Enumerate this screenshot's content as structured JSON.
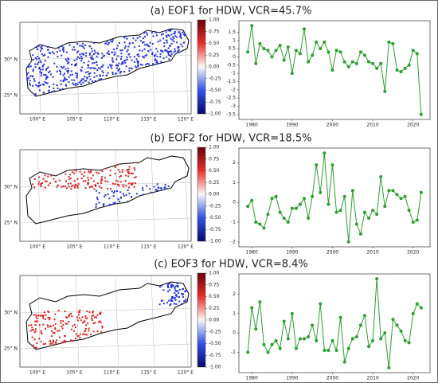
{
  "chart_data": [
    {
      "type": "line",
      "title": "(a) EOF1 for HDW, VCR=45.7%",
      "x": [
        1979,
        1980,
        1981,
        1982,
        1983,
        1984,
        1985,
        1986,
        1987,
        1988,
        1989,
        1990,
        1991,
        1992,
        1993,
        1994,
        1995,
        1996,
        1997,
        1998,
        1999,
        2000,
        2001,
        2002,
        2003,
        2004,
        2005,
        2006,
        2007,
        2008,
        2009,
        2010,
        2011,
        2012,
        2013,
        2014,
        2015,
        2016,
        2017,
        2018,
        2019,
        2020,
        2021,
        2022
      ],
      "values": [
        0.3,
        1.9,
        -0.4,
        0.8,
        0.5,
        0.4,
        0,
        0.4,
        0.7,
        -0.2,
        0.6,
        -1,
        0.4,
        0.2,
        1.7,
        -0.3,
        0.1,
        0.9,
        0.5,
        0.9,
        0.3,
        -0.8,
        0.4,
        0.3,
        -0.3,
        -0.6,
        -0.3,
        -0.4,
        0.3,
        0.1,
        -0.3,
        -0.4,
        -0.7,
        -0.4,
        -2.1,
        0.9,
        0.8,
        -0.8,
        -0.9,
        -0.7,
        -0.5,
        0.4,
        0.2,
        -3.5
      ],
      "color": "#2ca02c",
      "xlim": [
        1976.8,
        2024.2
      ],
      "xticks": [
        1980,
        1990,
        2000,
        2010,
        2020
      ],
      "ylim": [
        -3.8,
        2.2
      ],
      "yticks": [
        -3.5,
        -3,
        -2.5,
        -2,
        -1.5,
        -1,
        -0.5,
        0,
        0.5,
        1,
        1.5
      ]
    },
    {
      "type": "line",
      "title": "(b) EOF2 for HDW, VCR=18.5%",
      "x": [
        1979,
        1980,
        1981,
        1982,
        1983,
        1984,
        1985,
        1986,
        1987,
        1988,
        1989,
        1990,
        1991,
        1992,
        1993,
        1994,
        1995,
        1996,
        1997,
        1998,
        1999,
        2000,
        2001,
        2002,
        2003,
        2004,
        2005,
        2006,
        2007,
        2008,
        2009,
        2010,
        2011,
        2012,
        2013,
        2014,
        2015,
        2016,
        2017,
        2018,
        2019,
        2020,
        2021,
        2022
      ],
      "values": [
        -0.2,
        0.1,
        -1,
        -1.1,
        -1.3,
        -0.6,
        0.2,
        0.3,
        -0.5,
        -0.8,
        -1,
        -0.3,
        -0.3,
        -0.1,
        0.2,
        -0.8,
        0.3,
        1.9,
        0.5,
        2.5,
        -0.1,
        1.9,
        -0.5,
        -0.4,
        0.3,
        -2,
        0.6,
        -1.1,
        -1.6,
        -0.5,
        -0.8,
        -0.4,
        -0.6,
        1.3,
        -0.2,
        0.6,
        0.6,
        0.4,
        0.2,
        0.3,
        -0.4,
        -1,
        -0.9,
        0.5
      ],
      "color": "#2ca02c",
      "xlim": [
        1976.8,
        2024.2
      ],
      "xticks": [
        1980,
        1990,
        2000,
        2010,
        2020
      ],
      "ylim": [
        -2.25,
        2.75
      ],
      "yticks": [
        -2,
        -1,
        0,
        1,
        2
      ]
    },
    {
      "type": "line",
      "title": "(c) EOF3 for HDW, VCR=8.4%",
      "x": [
        1979,
        1980,
        1981,
        1982,
        1983,
        1984,
        1985,
        1986,
        1987,
        1988,
        1989,
        1990,
        1991,
        1992,
        1993,
        1994,
        1995,
        1996,
        1997,
        1998,
        1999,
        2000,
        2001,
        2002,
        2003,
        2004,
        2005,
        2006,
        2007,
        2008,
        2009,
        2010,
        2011,
        2012,
        2013,
        2014,
        2015,
        2016,
        2017,
        2018,
        2019,
        2020,
        2021,
        2022
      ],
      "values": [
        -1,
        1.3,
        0.2,
        1.6,
        -0.6,
        -1,
        -0.6,
        -0.4,
        -0.8,
        0.6,
        -0.3,
        1,
        -0.8,
        -0.3,
        -0.3,
        -0.2,
        0.4,
        -0.4,
        1.5,
        -0.9,
        -0.9,
        -0.4,
        -0.9,
        0.8,
        -1.5,
        -0.8,
        -0.3,
        -0.2,
        0.4,
        0.9,
        -0.7,
        -0.4,
        2.8,
        -0.3,
        0,
        -1.8,
        0.7,
        0.4,
        0.1,
        -0.4,
        -0.5,
        1,
        1.5,
        1.3
      ],
      "color": "#2ca02c",
      "xlim": [
        1976.8,
        2024.2
      ],
      "xticks": [
        1980,
        1990,
        2000,
        2010,
        2020
      ],
      "ylim": [
        -2.05,
        3.05
      ],
      "yticks": [
        -1,
        0,
        1,
        2
      ]
    }
  ],
  "maps": {
    "lon_labels": [
      "100° E",
      "105° E",
      "110° E",
      "115° E",
      "120° E"
    ],
    "lat_labels": [
      "25° N",
      "30° N"
    ],
    "colorbar_ticks": [
      {
        "value": 1,
        "label": "1.00"
      },
      {
        "value": 0.75,
        "label": "0.75"
      },
      {
        "value": 0.5,
        "label": "0.50"
      },
      {
        "value": 0.25,
        "label": "0.25"
      },
      {
        "value": 0,
        "label": "0.00"
      },
      {
        "value": -0.25,
        "label": "-0.25"
      },
      {
        "value": -0.5,
        "label": "-0.50"
      },
      {
        "value": -0.75,
        "label": "-0.75"
      },
      {
        "value": -1,
        "label": "-1.00"
      }
    ]
  }
}
